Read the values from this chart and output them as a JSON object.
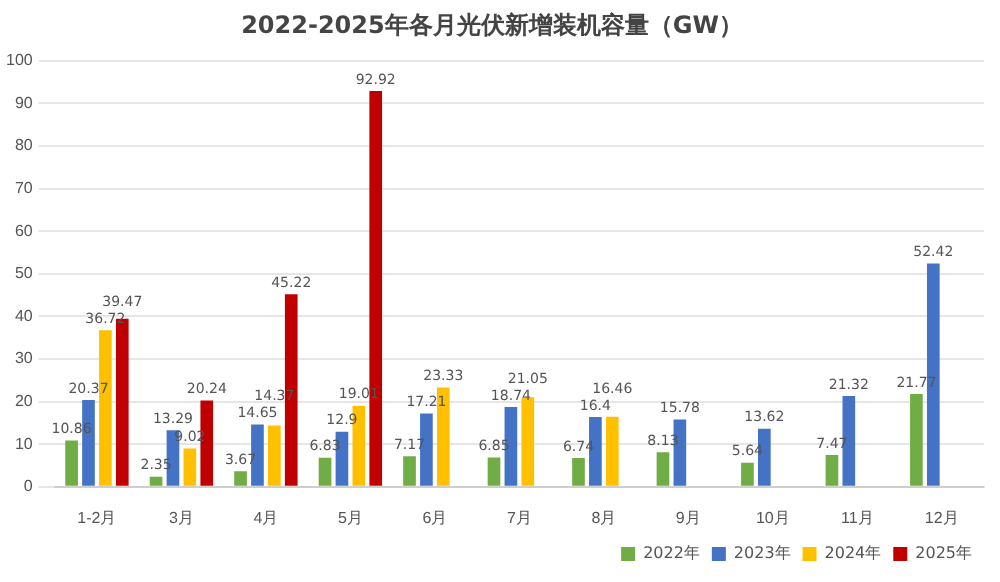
{
  "chart_data": {
    "type": "bar",
    "title": "2022-2025年各月光伏新增装机容量（GW）",
    "categories": [
      "1-2月",
      "3月",
      "4月",
      "5月",
      "6月",
      "7月",
      "8月",
      "9月",
      "10月",
      "11月",
      "12月"
    ],
    "series": [
      {
        "name": "2022年",
        "color": "#70ad47",
        "values": [
          10.86,
          2.35,
          3.67,
          6.83,
          7.17,
          6.85,
          6.74,
          8.13,
          5.64,
          7.47,
          21.77
        ]
      },
      {
        "name": "2023年",
        "color": "#4472c4",
        "values": [
          20.37,
          13.29,
          14.65,
          12.9,
          17.21,
          18.74,
          16.4,
          15.78,
          13.62,
          21.32,
          52.42
        ]
      },
      {
        "name": "2024年",
        "color": "#ffc000",
        "values": [
          36.72,
          9.02,
          14.37,
          19.01,
          23.33,
          21.05,
          16.46,
          null,
          null,
          null,
          null
        ]
      },
      {
        "name": "2025年",
        "color": "#c00000",
        "values": [
          39.47,
          20.24,
          45.22,
          92.92,
          null,
          null,
          null,
          null,
          null,
          null,
          null
        ]
      }
    ],
    "ylim": [
      0,
      100
    ],
    "yticks": [
      0,
      10,
      20,
      30,
      40,
      50,
      60,
      70,
      80,
      90,
      100
    ],
    "grid": "y",
    "legend": "bottom right",
    "data_labels": true
  }
}
